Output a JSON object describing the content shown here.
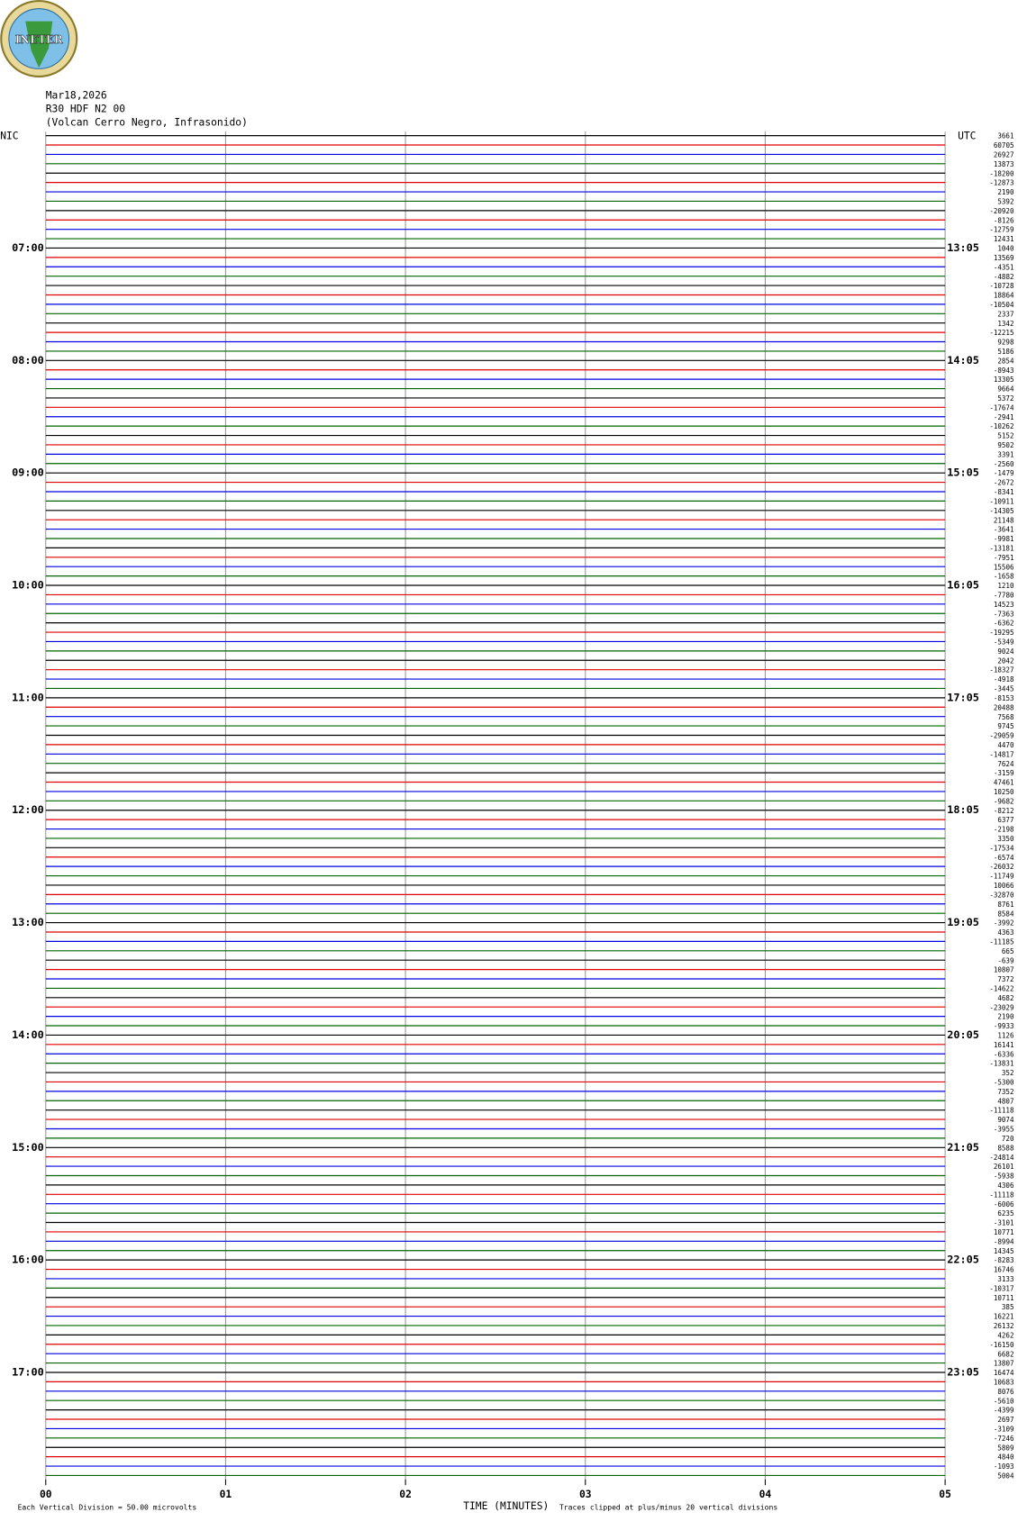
{
  "header": {
    "logo": "INETER",
    "date": "Mar18,2026",
    "station": "R30 HDF N2 00",
    "location": "(Volcan Cerro Negro, Infrasonido)",
    "left_zone": "NIC",
    "right_zone": "UTC"
  },
  "chart_data": {
    "type": "helicorder",
    "xlim": [
      0,
      5
    ],
    "xticks": [
      {
        "value": 0,
        "label": "00"
      },
      {
        "value": 1,
        "label": "01"
      },
      {
        "value": 2,
        "label": "02"
      },
      {
        "value": 3,
        "label": "03"
      },
      {
        "value": 4,
        "label": "04"
      },
      {
        "value": 5,
        "label": "05"
      }
    ],
    "xlabel": "TIME (MINUTES)",
    "colors": [
      "#000000",
      "#e00000",
      "#0000e0",
      "#006400"
    ],
    "left_time_labels": [
      "07:00",
      "08:00",
      "09:00",
      "10:00",
      "11:00",
      "12:00",
      "13:00",
      "14:00",
      "15:00",
      "16:00",
      "17:00"
    ],
    "right_time_labels": [
      "13:05",
      "14:05",
      "15:05",
      "16:05",
      "17:05",
      "18:05",
      "19:05",
      "20:05",
      "21:05",
      "22:05",
      "23:05"
    ],
    "offsets": [
      3661,
      60705,
      26927,
      13873,
      -18200,
      -12873,
      2190,
      5392,
      -20920,
      -8126,
      -12759,
      12431,
      1040,
      13569,
      -4351,
      -4882,
      -10728,
      18864,
      -10504,
      2337,
      1342,
      -12215,
      9298,
      5186,
      2854,
      -8943,
      13305,
      9664,
      5372,
      -17674,
      -2941,
      -10262,
      5152,
      9502,
      3391,
      -2560,
      -1479,
      -2672,
      -8341,
      -10911,
      -14305,
      21148,
      -3641,
      -9981,
      -13181,
      -7951,
      15506,
      -1658,
      1210,
      -7780,
      14523,
      -7363,
      -6362,
      -19295,
      -5349,
      9024,
      2042,
      -18327,
      -4918,
      -3445,
      -8153,
      20488,
      7568,
      9745,
      -29059,
      4470,
      -14817,
      7624,
      -3159,
      47461,
      10250,
      -9682,
      -8212,
      6377,
      -2198,
      3350,
      -17534,
      -6574,
      -26032,
      -11749,
      10066,
      -32870,
      8761,
      8584,
      -3992,
      4363,
      -11185,
      665,
      -639,
      10807,
      7372,
      -14622,
      4682,
      -23029,
      2190,
      -9933,
      1126,
      16141,
      -6336,
      -13831,
      352,
      -5300,
      7352,
      4807,
      -11118,
      9074,
      -3955,
      720,
      8588,
      -24814,
      26101,
      -5938,
      4306,
      -11118,
      -6006,
      6235,
      -3101,
      10771,
      -8994,
      14345,
      -8283,
      16746,
      3133,
      -10317,
      10711,
      385,
      16221,
      26132,
      4262,
      -16150,
      6682,
      13807,
      16474,
      10683,
      8076,
      -5610,
      -4399,
      2697,
      -3109,
      -7246,
      5809,
      4840,
      -1093,
      5004
    ],
    "scale_note": "Each Vertical Division =  50.00 microvolts",
    "clip_note": "Traces clipped at plus/minus 20 vertical divisions"
  }
}
